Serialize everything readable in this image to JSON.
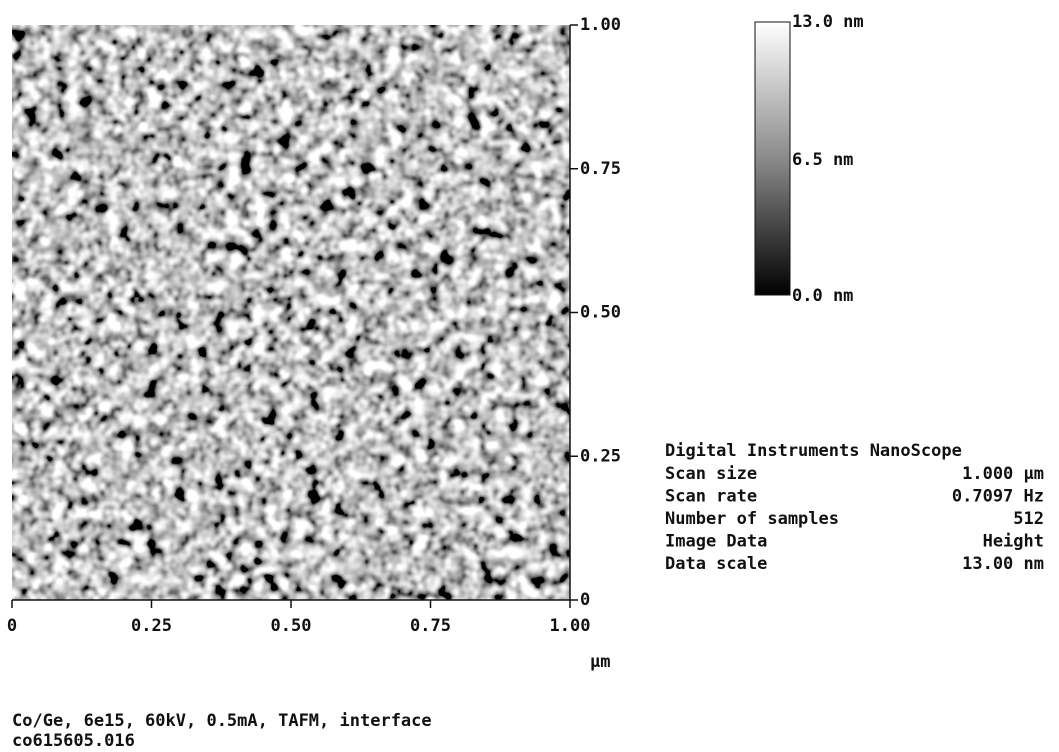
{
  "image": {
    "y_ticks": [
      "1.00",
      "0.75",
      "0.50",
      "0.25",
      "0"
    ],
    "x_ticks": [
      "0",
      "0.25",
      "0.50",
      "0.75",
      "1.00"
    ],
    "x_unit": "µm"
  },
  "color_bar": {
    "top": "13.0 nm",
    "middle": "6.5 nm",
    "bottom": "0.0 nm"
  },
  "info": {
    "header": "Digital Instruments NanoScope",
    "rows": [
      [
        "Scan size",
        "1.000 µm"
      ],
      [
        "Scan rate",
        "0.7097 Hz"
      ],
      [
        "Number of samples",
        "512"
      ],
      [
        "Image Data",
        "Height"
      ],
      [
        "Data scale",
        "13.00 nm"
      ]
    ]
  },
  "caption": [
    "Co/Ge, 6e15, 60kV, 0.5mA, TAFM, interface",
    "co615605.016"
  ]
}
